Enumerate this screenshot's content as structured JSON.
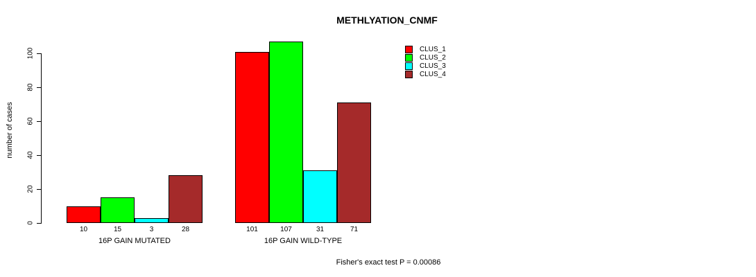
{
  "title": "METHLYATION_CNMF",
  "footer": "Fisher's exact test P = 0.00086",
  "chart_data": {
    "type": "bar",
    "title": "METHLYATION_CNMF",
    "xlabel": "",
    "ylabel": "number of cases",
    "categories": [
      "16P GAIN MUTATED",
      "16P GAIN WILD-TYPE"
    ],
    "series": [
      {
        "name": "CLUS_1",
        "color": "#ff0000",
        "values": [
          10,
          101
        ]
      },
      {
        "name": "CLUS_2",
        "color": "#00ff00",
        "values": [
          15,
          107
        ]
      },
      {
        "name": "CLUS_3",
        "color": "#00ffff",
        "values": [
          3,
          31
        ]
      },
      {
        "name": "CLUS_4",
        "color": "#a52a2a",
        "values": [
          28,
          71
        ]
      }
    ],
    "bar_value_labels": [
      [
        10,
        15,
        3,
        28
      ],
      [
        101,
        107,
        31,
        71
      ]
    ],
    "yticks": [
      0,
      20,
      40,
      60,
      80,
      100
    ],
    "ylim": [
      0,
      107
    ],
    "grid": false,
    "legend_position": "top-right",
    "legend_border": false,
    "annotation": "Fisher's exact test P = 0.00086"
  }
}
